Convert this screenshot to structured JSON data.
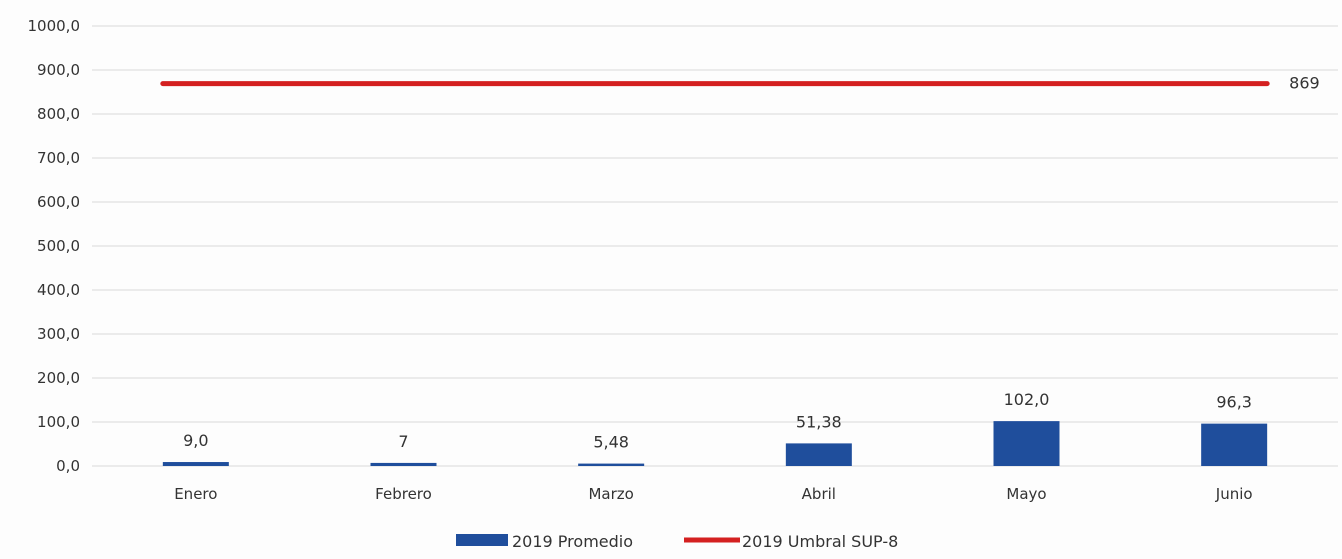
{
  "chart_data": {
    "type": "bar",
    "categories": [
      "Enero",
      "Febrero",
      "Marzo",
      "Abril",
      "Mayo",
      "Junio"
    ],
    "series": [
      {
        "name": "2019 Promedio",
        "kind": "bar",
        "values": [
          9.0,
          7,
          5.48,
          51.38,
          102.0,
          96.3
        ],
        "labels": [
          "9,0",
          "7",
          "5,48",
          "51,38",
          "102,0",
          "96,3"
        ],
        "color": "#1f4e9c"
      },
      {
        "name": "2019 Umbral SUP-8",
        "kind": "line",
        "values": [
          869,
          869,
          869,
          869,
          869,
          869
        ],
        "end_label": "869",
        "color": "#d42020"
      }
    ],
    "ylim": [
      0,
      1000
    ],
    "yticks": [
      0,
      100,
      200,
      300,
      400,
      500,
      600,
      700,
      800,
      900,
      1000
    ],
    "ytick_labels": [
      "0,0",
      "100,0",
      "200,0",
      "300,0",
      "400,0",
      "500,0",
      "600,0",
      "700,0",
      "800,0",
      "900,0",
      "1000,0"
    ],
    "grid": true,
    "legend_position": "bottom",
    "title": "",
    "xlabel": "",
    "ylabel": ""
  }
}
